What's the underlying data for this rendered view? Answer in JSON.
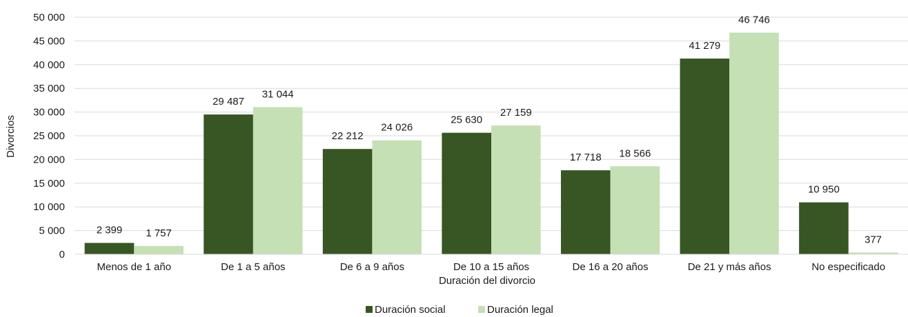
{
  "chart_data": {
    "type": "bar",
    "title": "",
    "xlabel": "Duración del divorcio",
    "ylabel": "Divorcios",
    "ylim": [
      0,
      50000
    ],
    "yticks": [
      0,
      5000,
      10000,
      15000,
      20000,
      25000,
      30000,
      35000,
      40000,
      45000,
      50000
    ],
    "ytick_labels": [
      "0",
      "5 000",
      "10 000",
      "15 000",
      "20 000",
      "25 000",
      "30 000",
      "35 000",
      "40 000",
      "45 000",
      "50 000"
    ],
    "categories": [
      "Menos de 1 año",
      "De 1 a 5 años",
      "De 6 a 9 años",
      "De 10 a 15 años",
      "De 16 a 20 años",
      "De 21 y más años",
      "No especificado"
    ],
    "series": [
      {
        "name": "Duración social",
        "color": "#375623",
        "values": [
          2399,
          29487,
          22212,
          25630,
          17718,
          41279,
          10950
        ],
        "labels": [
          "2 399",
          "29 487",
          "22 212",
          "25 630",
          "17 718",
          "41 279",
          "10 950"
        ]
      },
      {
        "name": "Duración legal",
        "color": "#c5e0b4",
        "values": [
          1757,
          31044,
          24026,
          27159,
          18566,
          46746,
          377
        ],
        "labels": [
          "1 757",
          "31 044",
          "24 026",
          "27 159",
          "18 566",
          "46 746",
          "377"
        ]
      }
    ],
    "grid": true,
    "gridline_color": "#d9d9d9",
    "legend": "bottom-center"
  }
}
